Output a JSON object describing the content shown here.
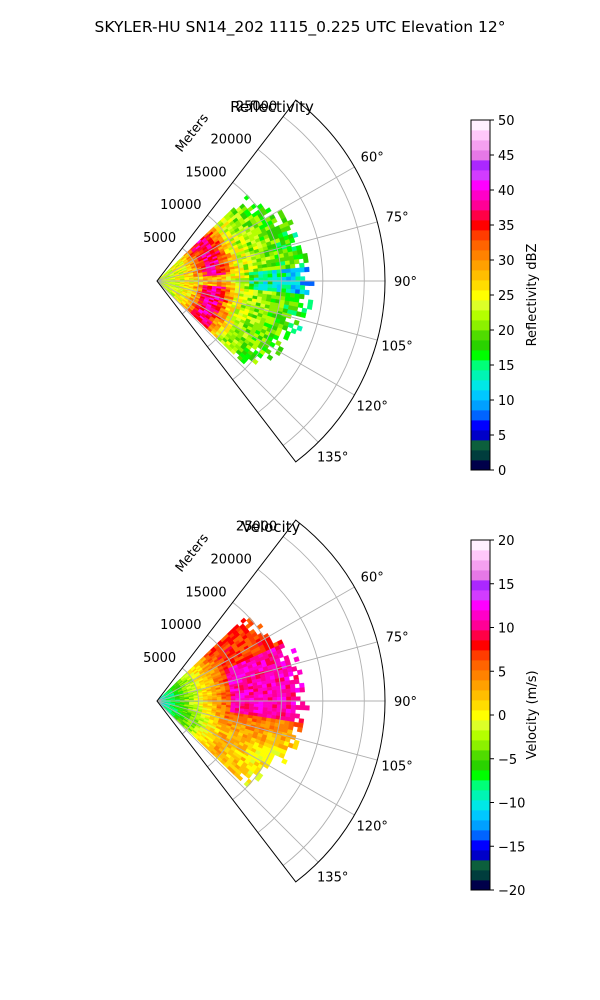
{
  "figure": {
    "suptitle": "SKYLER-HU  SN14_202  1115_0.225 UTC Elevation 12°"
  },
  "chart_data": [
    {
      "type": "heatmap",
      "projection": "polar-sector",
      "title": "Reflectivity",
      "radial_label": "Meters",
      "radial_ticks": [
        5000,
        10000,
        15000,
        20000,
        25000
      ],
      "radial_ticklabels": [
        "5000",
        "10000",
        "15000",
        "20000",
        "25000"
      ],
      "rmax": 27500,
      "theta_range_deg": [
        37.5,
        142.5
      ],
      "theta_ticks": [
        60,
        75,
        90,
        105,
        120,
        135
      ],
      "theta_ticklabels": [
        "60°",
        "75°",
        "90°",
        "105°",
        "120°",
        "135°"
      ],
      "grid": true,
      "field": "reflectivity",
      "colorbar": {
        "label": "Reflectivity dBZ",
        "min": 0,
        "max": 50,
        "ticks": [
          0,
          5,
          10,
          15,
          20,
          25,
          30,
          35,
          40,
          45,
          50
        ],
        "ticklabels": [
          "0",
          "5",
          "10",
          "15",
          "20",
          "25",
          "30",
          "35",
          "40",
          "45",
          "50"
        ],
        "colors": [
          "#00004a",
          "#003d3d",
          "#0c5f3c",
          "#0000c8",
          "#0000ff",
          "#0064ff",
          "#00a0ff",
          "#00c8ff",
          "#00e8e6",
          "#00f5b4",
          "#00ff78",
          "#00ff00",
          "#2ad200",
          "#50dc00",
          "#8cf000",
          "#b4ff00",
          "#dcff28",
          "#ffff00",
          "#ffdc00",
          "#ffbe00",
          "#ffa000",
          "#ff8200",
          "#ff6400",
          "#ff3c00",
          "#ff0000",
          "#ff0046",
          "#ff0096",
          "#ff00c8",
          "#ff00ff",
          "#d23cff",
          "#aa28ff",
          "#e678e6",
          "#f5a0f0",
          "#ffc8fa",
          "#fff0ff"
        ]
      }
    },
    {
      "type": "heatmap",
      "projection": "polar-sector",
      "title": "Velocity",
      "radial_label": "Meters",
      "radial_ticks": [
        5000,
        10000,
        15000,
        20000,
        25000
      ],
      "radial_ticklabels": [
        "5000",
        "10000",
        "15000",
        "20000",
        "25000"
      ],
      "rmax": 27500,
      "theta_range_deg": [
        37.5,
        142.5
      ],
      "theta_ticks": [
        60,
        75,
        90,
        105,
        120,
        135
      ],
      "theta_ticklabels": [
        "60°",
        "75°",
        "90°",
        "105°",
        "120°",
        "135°"
      ],
      "grid": true,
      "field": "velocity",
      "colorbar": {
        "label": "Velocity (m/s)",
        "min": -20,
        "max": 20,
        "ticks": [
          -20,
          -15,
          -10,
          -5,
          0,
          5,
          10,
          15,
          20
        ],
        "ticklabels": [
          "−20",
          "−15",
          "−10",
          "−5",
          "0",
          "5",
          "10",
          "15",
          "20"
        ],
        "colors": [
          "#00004a",
          "#003d3d",
          "#0c5f3c",
          "#0000c8",
          "#0000ff",
          "#0064ff",
          "#00a0ff",
          "#00c8ff",
          "#00e8e6",
          "#00f5b4",
          "#00ff78",
          "#00ff00",
          "#2ad200",
          "#50dc00",
          "#8cf000",
          "#b4ff00",
          "#dcff28",
          "#ffff00",
          "#ffdc00",
          "#ffbe00",
          "#ffa000",
          "#ff8200",
          "#ff6400",
          "#ff3c00",
          "#ff0000",
          "#ff0046",
          "#ff0096",
          "#ff00c8",
          "#ff00ff",
          "#d23cff",
          "#aa28ff",
          "#e678e6",
          "#f5a0f0",
          "#ffc8fa",
          "#fff0ff"
        ]
      }
    }
  ]
}
